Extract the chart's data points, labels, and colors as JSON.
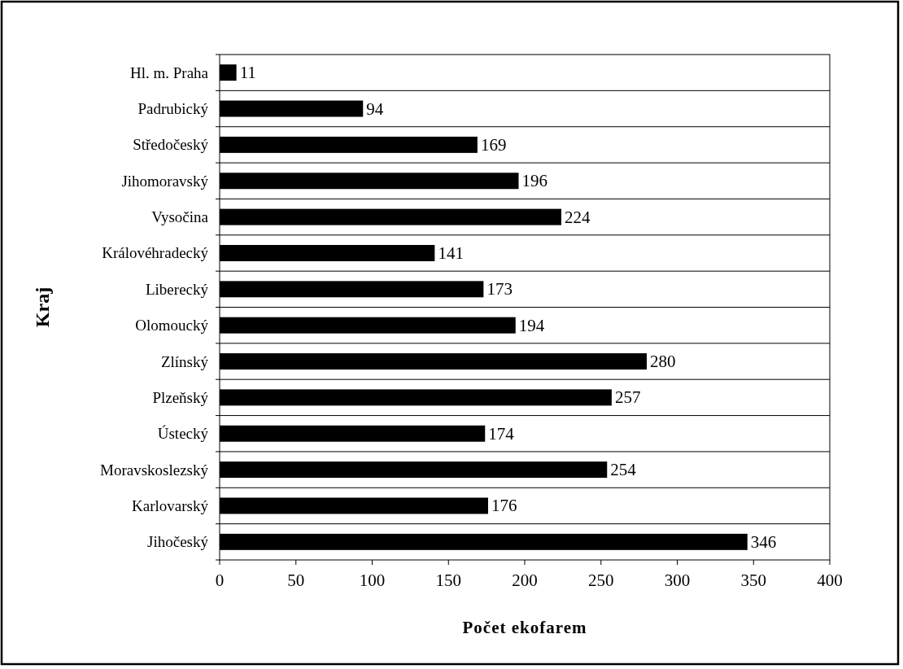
{
  "chart_data": {
    "type": "bar",
    "orientation": "horizontal",
    "xlabel": "Počet ekofarem",
    "ylabel": "Kraj",
    "categories": [
      "Hl. m. Praha",
      "Padrubický",
      "Středočeský",
      "Jihomoravský",
      "Vysočina",
      "Královéhradecký",
      "Liberecký",
      "Olomoucký",
      "Zlínský",
      "Plzeňský",
      "Ústecký",
      "Moravskoslezský",
      "Karlovarský",
      "Jihočeský"
    ],
    "values": [
      11,
      94,
      169,
      196,
      224,
      141,
      173,
      194,
      280,
      257,
      174,
      254,
      176,
      346
    ],
    "color": "#000000",
    "data_labels": true,
    "grid": "y",
    "xlim": [
      0,
      400
    ],
    "xticks": [
      0,
      50,
      100,
      150,
      200,
      250,
      300,
      350,
      400
    ]
  }
}
